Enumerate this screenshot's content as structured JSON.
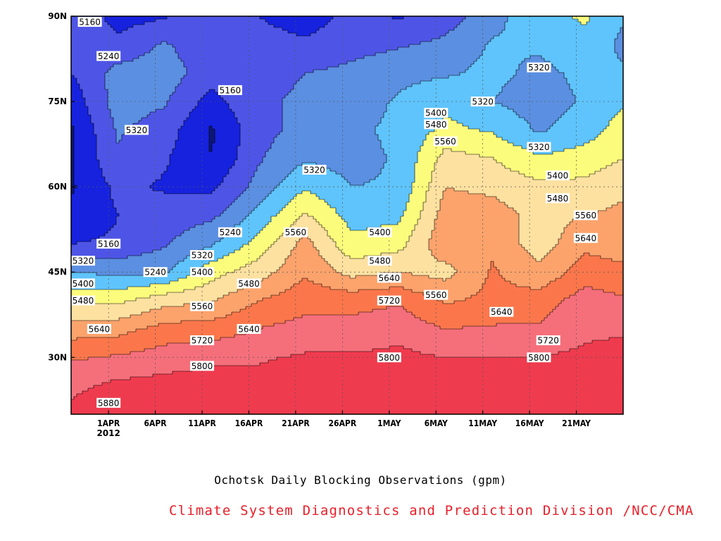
{
  "chart_data": {
    "type": "heatmap",
    "subtype": "filled-contour",
    "title": "Ochotsk Daily Blocking Observations (gpm)",
    "credit": "Climate System Diagnostics and Prediction Division /NCC/CMA",
    "credit_color": "#e8202a",
    "x_ticks": [
      "1APR",
      "6APR",
      "11APR",
      "16APR",
      "21APR",
      "26APR",
      "1MAY",
      "6MAY",
      "11MAY",
      "16MAY",
      "21MAY"
    ],
    "x_year_label": "2012",
    "y_ticks": [
      "30N",
      "45N",
      "60N",
      "75N",
      "90N"
    ],
    "xlim": [
      "2012-03-28",
      "2012-05-26"
    ],
    "ylim_deg_north": [
      20,
      90
    ],
    "grid": true,
    "contour_levels": [
      5080,
      5160,
      5240,
      5320,
      5400,
      5480,
      5560,
      5640,
      5720,
      5800,
      5880
    ],
    "fill_colors": [
      "#0d1775",
      "#1622de",
      "#4e55e6",
      "#5b8fe1",
      "#5fc4fb",
      "#fcfc7c",
      "#fde1a0",
      "#fca36c",
      "#fb774b",
      "#f56f7b",
      "#ef3b4e"
    ],
    "lat_axis": [
      90,
      85,
      80,
      75,
      70,
      65,
      60,
      55,
      50,
      45,
      40,
      35,
      30,
      25,
      20
    ],
    "time_axis": [
      "2012-03-28",
      "2012-04-02",
      "2012-04-07",
      "2012-04-12",
      "2012-04-17",
      "2012-04-22",
      "2012-04-27",
      "2012-05-02",
      "2012-05-07",
      "2012-05-12",
      "2012-05-17",
      "2012-05-22",
      "2012-05-26"
    ],
    "field_gpm": [
      [
        5230,
        5130,
        5150,
        5230,
        5160,
        5110,
        5190,
        5150,
        5200,
        5290,
        5380,
        5410,
        5330
      ],
      [
        5220,
        5180,
        5250,
        5180,
        5200,
        5180,
        5210,
        5230,
        5260,
        5330,
        5330,
        5380,
        5300
      ],
      [
        5160,
        5270,
        5280,
        5200,
        5220,
        5240,
        5260,
        5300,
        5310,
        5340,
        5300,
        5340,
        5330
      ],
      [
        5110,
        5280,
        5250,
        5130,
        5230,
        5250,
        5280,
        5330,
        5380,
        5320,
        5280,
        5330,
        5390
      ],
      [
        5070,
        5250,
        5200,
        5070,
        5210,
        5270,
        5300,
        5340,
        5420,
        5390,
        5310,
        5360,
        5440
      ],
      [
        5070,
        5230,
        5170,
        5080,
        5230,
        5310,
        5290,
        5330,
        5510,
        5480,
        5410,
        5440,
        5480
      ],
      [
        5070,
        5180,
        5150,
        5140,
        5270,
        5390,
        5320,
        5330,
        5560,
        5540,
        5500,
        5500,
        5540
      ],
      [
        5100,
        5160,
        5200,
        5220,
        5350,
        5490,
        5370,
        5380,
        5600,
        5600,
        5530,
        5560,
        5580
      ],
      [
        5160,
        5170,
        5230,
        5310,
        5430,
        5590,
        5420,
        5450,
        5620,
        5620,
        5520,
        5620,
        5600
      ],
      [
        5320,
        5300,
        5310,
        5450,
        5520,
        5630,
        5530,
        5560,
        5530,
        5650,
        5580,
        5680,
        5660
      ],
      [
        5460,
        5460,
        5530,
        5550,
        5640,
        5690,
        5690,
        5710,
        5630,
        5660,
        5680,
        5760,
        5730
      ],
      [
        5600,
        5610,
        5670,
        5680,
        5720,
        5750,
        5750,
        5770,
        5720,
        5730,
        5730,
        5780,
        5790
      ],
      [
        5710,
        5730,
        5760,
        5780,
        5790,
        5810,
        5810,
        5820,
        5800,
        5800,
        5800,
        5820,
        5830
      ],
      [
        5780,
        5820,
        5830,
        5840,
        5830,
        5850,
        5850,
        5850,
        5850,
        5850,
        5850,
        5860,
        5860
      ],
      [
        5820,
        5890,
        5860,
        5880,
        5860,
        5860,
        5870,
        5870,
        5870,
        5870,
        5900,
        5860,
        5860
      ]
    ],
    "contour_labels": [
      {
        "text": "5160",
        "date": "2012-03-30",
        "lat": 89
      },
      {
        "text": "5240",
        "date": "2012-04-01",
        "lat": 83
      },
      {
        "text": "5320",
        "date": "2012-04-04",
        "lat": 70
      },
      {
        "text": "5160",
        "date": "2012-04-14",
        "lat": 77
      },
      {
        "text": "5160",
        "date": "2012-04-01",
        "lat": 50
      },
      {
        "text": "5240",
        "date": "2012-04-06",
        "lat": 45
      },
      {
        "text": "5240",
        "date": "2012-04-14",
        "lat": 52
      },
      {
        "text": "5320",
        "date": "2012-03-28",
        "lat": 47
      },
      {
        "text": "5320",
        "date": "2012-04-11",
        "lat": 48
      },
      {
        "text": "5400",
        "date": "2012-03-28",
        "lat": 43
      },
      {
        "text": "5400",
        "date": "2012-04-11",
        "lat": 45
      },
      {
        "text": "5480",
        "date": "2012-03-28",
        "lat": 40
      },
      {
        "text": "5480",
        "date": "2012-04-16",
        "lat": 43
      },
      {
        "text": "5560",
        "date": "2012-04-11",
        "lat": 39
      },
      {
        "text": "5640",
        "date": "2012-03-31",
        "lat": 35
      },
      {
        "text": "5640",
        "date": "2012-04-16",
        "lat": 35
      },
      {
        "text": "5720",
        "date": "2012-04-11",
        "lat": 33
      },
      {
        "text": "5800",
        "date": "2012-04-11",
        "lat": 28.5
      },
      {
        "text": "5880",
        "date": "2012-04-01",
        "lat": 22
      },
      {
        "text": "5320",
        "date": "2012-04-23",
        "lat": 63
      },
      {
        "text": "5560",
        "date": "2012-04-21",
        "lat": 52
      },
      {
        "text": "5400",
        "date": "2012-04-30",
        "lat": 52
      },
      {
        "text": "5480",
        "date": "2012-04-30",
        "lat": 47
      },
      {
        "text": "5640",
        "date": "2012-05-01",
        "lat": 44
      },
      {
        "text": "5720",
        "date": "2012-05-01",
        "lat": 40
      },
      {
        "text": "5800",
        "date": "2012-05-01",
        "lat": 30
      },
      {
        "text": "5560",
        "date": "2012-05-06",
        "lat": 41
      },
      {
        "text": "5560",
        "date": "2012-05-07",
        "lat": 68
      },
      {
        "text": "5480",
        "date": "2012-05-06",
        "lat": 71
      },
      {
        "text": "5400",
        "date": "2012-05-06",
        "lat": 73
      },
      {
        "text": "5320",
        "date": "2012-05-11",
        "lat": 75
      },
      {
        "text": "5640",
        "date": "2012-05-13",
        "lat": 38
      },
      {
        "text": "5320",
        "date": "2012-05-17",
        "lat": 81
      },
      {
        "text": "5320",
        "date": "2012-05-17",
        "lat": 67
      },
      {
        "text": "5400",
        "date": "2012-05-19",
        "lat": 62
      },
      {
        "text": "5480",
        "date": "2012-05-19",
        "lat": 58
      },
      {
        "text": "5560",
        "date": "2012-05-22",
        "lat": 55
      },
      {
        "text": "5640",
        "date": "2012-05-22",
        "lat": 51
      },
      {
        "text": "5720",
        "date": "2012-05-18",
        "lat": 33
      },
      {
        "text": "5800",
        "date": "2012-05-17",
        "lat": 30
      }
    ]
  }
}
